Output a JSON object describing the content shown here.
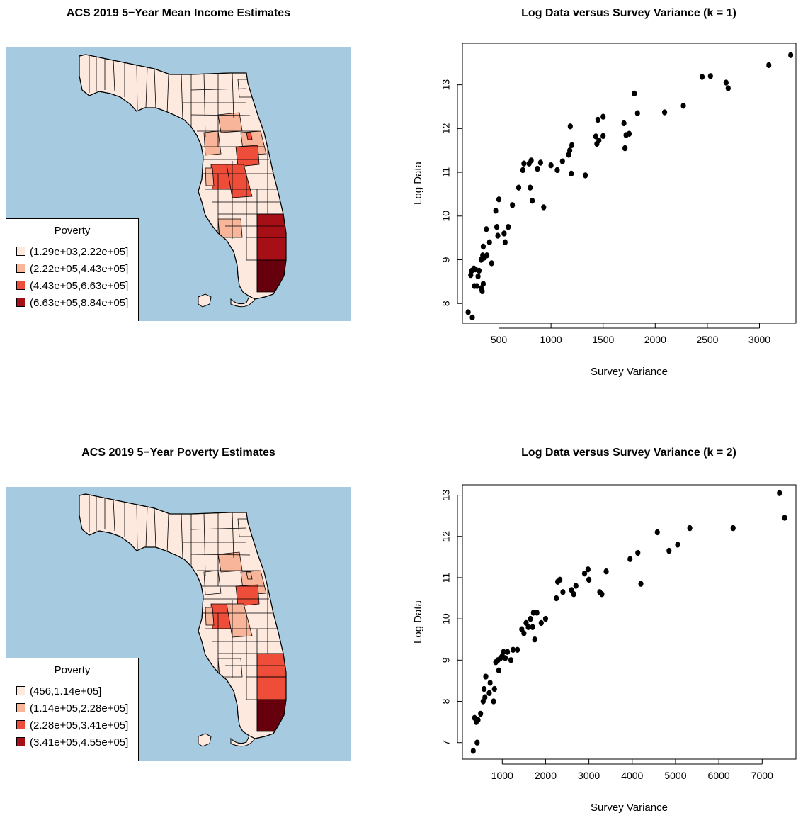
{
  "chart_data": [
    {
      "type": "choropleth",
      "title": "ACS 2019 5−Year Mean Income Estimates",
      "legend": {
        "title": "Poverty",
        "placement": "bottom-left",
        "entries": [
          {
            "label": "(1.29e+03,2.22e+05]",
            "color": "#fee9df"
          },
          {
            "label": "(2.22e+05,4.43e+05]",
            "color": "#f9b599"
          },
          {
            "label": "(4.43e+05,6.63e+05]",
            "color": "#ee4d3a"
          },
          {
            "label": "(6.63e+05,8.84e+05]",
            "color": "#a50f15"
          }
        ]
      },
      "highlight_colors": [
        "#fee9df",
        "#f9b599",
        "#f9b599",
        "#f9b599",
        "#ee4d3a",
        "#ee4d3a",
        "#ee4d3a",
        "#ee4d3a",
        "#a50f15",
        "#67000d",
        "#f9b599",
        "#f9b599"
      ]
    },
    {
      "type": "scatter",
      "title": "Log Data versus Survey Variance (k = 1)",
      "xlabel": "Survey Variance",
      "ylabel": "Log Data",
      "xlim": [
        150,
        3350
      ],
      "ylim": [
        7.55,
        13.95
      ],
      "xticks": [
        500,
        1000,
        1500,
        2000,
        2500,
        3000
      ],
      "yticks": [
        8,
        9,
        10,
        11,
        12,
        13
      ],
      "points": [
        [
          205,
          7.8
        ],
        [
          245,
          7.68
        ],
        [
          230,
          8.65
        ],
        [
          240,
          8.75
        ],
        [
          260,
          8.8
        ],
        [
          275,
          8.78
        ],
        [
          265,
          8.4
        ],
        [
          290,
          8.4
        ],
        [
          300,
          8.62
        ],
        [
          310,
          8.75
        ],
        [
          330,
          8.35
        ],
        [
          340,
          8.28
        ],
        [
          350,
          8.45
        ],
        [
          330,
          9.0
        ],
        [
          345,
          9.1
        ],
        [
          360,
          9.05
        ],
        [
          350,
          9.3
        ],
        [
          385,
          9.1
        ],
        [
          410,
          9.4
        ],
        [
          380,
          9.7
        ],
        [
          430,
          8.92
        ],
        [
          470,
          10.12
        ],
        [
          480,
          9.75
        ],
        [
          500,
          10.38
        ],
        [
          490,
          9.55
        ],
        [
          550,
          9.6
        ],
        [
          560,
          9.4
        ],
        [
          590,
          9.75
        ],
        [
          630,
          10.25
        ],
        [
          690,
          10.65
        ],
        [
          730,
          11.05
        ],
        [
          740,
          11.2
        ],
        [
          790,
          11.2
        ],
        [
          800,
          10.65
        ],
        [
          810,
          11.27
        ],
        [
          820,
          10.35
        ],
        [
          870,
          11.08
        ],
        [
          900,
          11.22
        ],
        [
          930,
          10.2
        ],
        [
          1000,
          11.16
        ],
        [
          1060,
          11.05
        ],
        [
          1110,
          11.25
        ],
        [
          1170,
          11.4
        ],
        [
          1180,
          11.5
        ],
        [
          1185,
          12.05
        ],
        [
          1200,
          11.62
        ],
        [
          1195,
          10.97
        ],
        [
          1330,
          10.93
        ],
        [
          1430,
          11.82
        ],
        [
          1440,
          11.65
        ],
        [
          1460,
          11.73
        ],
        [
          1450,
          12.2
        ],
        [
          1500,
          11.83
        ],
        [
          1500,
          12.27
        ],
        [
          1700,
          12.12
        ],
        [
          1710,
          11.55
        ],
        [
          1720,
          11.85
        ],
        [
          1750,
          11.88
        ],
        [
          1800,
          12.8
        ],
        [
          1830,
          12.35
        ],
        [
          2090,
          12.37
        ],
        [
          2270,
          12.52
        ],
        [
          2450,
          13.18
        ],
        [
          2530,
          13.2
        ],
        [
          2680,
          13.05
        ],
        [
          2700,
          12.92
        ],
        [
          3090,
          13.45
        ],
        [
          3300,
          13.68
        ]
      ]
    },
    {
      "type": "choropleth",
      "title": "ACS 2019 5−Year Poverty Estimates",
      "legend": {
        "title": "Poverty",
        "placement": "bottom-left",
        "entries": [
          {
            "label": "(456,1.14e+05]",
            "color": "#fee9df"
          },
          {
            "label": "(1.14e+05,2.28e+05]",
            "color": "#f9b599"
          },
          {
            "label": "(2.28e+05,3.41e+05]",
            "color": "#ee4d3a"
          },
          {
            "label": "(3.41e+05,4.55e+05]",
            "color": "#a50f15"
          }
        ]
      },
      "highlight_colors": [
        "#fee9df",
        "#f9b599",
        "#fee9df",
        "#f9b599",
        "#ee4d3a",
        "#f9b599",
        "#ee4d3a",
        "#f9b599",
        "#ee4d3a",
        "#67000d",
        "#fee9df",
        "#f9b599"
      ]
    },
    {
      "type": "scatter",
      "title": "Log Data versus Survey Variance (k = 2)",
      "xlabel": "Survey Variance",
      "ylabel": "Log Data",
      "xlim": [
        80,
        7780
      ],
      "ylim": [
        6.6,
        13.25
      ],
      "xticks": [
        1000,
        2000,
        3000,
        4000,
        5000,
        6000,
        7000
      ],
      "yticks": [
        7,
        8,
        9,
        10,
        11,
        12,
        13
      ],
      "points": [
        [
          330,
          6.8
        ],
        [
          360,
          7.6
        ],
        [
          400,
          7.5
        ],
        [
          420,
          7.0
        ],
        [
          440,
          7.55
        ],
        [
          500,
          7.7
        ],
        [
          560,
          8.0
        ],
        [
          580,
          8.3
        ],
        [
          600,
          8.1
        ],
        [
          620,
          8.6
        ],
        [
          700,
          8.2
        ],
        [
          720,
          8.45
        ],
        [
          800,
          8.0
        ],
        [
          820,
          8.3
        ],
        [
          850,
          8.95
        ],
        [
          900,
          9.0
        ],
        [
          920,
          8.75
        ],
        [
          960,
          9.05
        ],
        [
          1000,
          9.1
        ],
        [
          1030,
          9.2
        ],
        [
          1070,
          9.05
        ],
        [
          1120,
          9.2
        ],
        [
          1200,
          9.0
        ],
        [
          1250,
          9.25
        ],
        [
          1350,
          9.25
        ],
        [
          1450,
          9.75
        ],
        [
          1500,
          9.65
        ],
        [
          1550,
          9.9
        ],
        [
          1600,
          9.8
        ],
        [
          1650,
          10.0
        ],
        [
          1700,
          9.8
        ],
        [
          1720,
          10.15
        ],
        [
          1750,
          9.5
        ],
        [
          1800,
          10.15
        ],
        [
          1900,
          9.9
        ],
        [
          2000,
          10.0
        ],
        [
          2250,
          10.5
        ],
        [
          2280,
          10.9
        ],
        [
          2330,
          10.95
        ],
        [
          2400,
          10.65
        ],
        [
          2600,
          10.7
        ],
        [
          2650,
          10.6
        ],
        [
          2700,
          10.8
        ],
        [
          2900,
          11.1
        ],
        [
          2980,
          11.2
        ],
        [
          3000,
          10.95
        ],
        [
          3250,
          10.65
        ],
        [
          3300,
          10.6
        ],
        [
          3400,
          11.15
        ],
        [
          3950,
          11.45
        ],
        [
          4130,
          11.6
        ],
        [
          4200,
          10.85
        ],
        [
          4580,
          12.1
        ],
        [
          4850,
          11.65
        ],
        [
          5050,
          11.8
        ],
        [
          5330,
          12.2
        ],
        [
          6330,
          12.2
        ],
        [
          7400,
          13.05
        ],
        [
          7520,
          12.45
        ]
      ]
    }
  ]
}
